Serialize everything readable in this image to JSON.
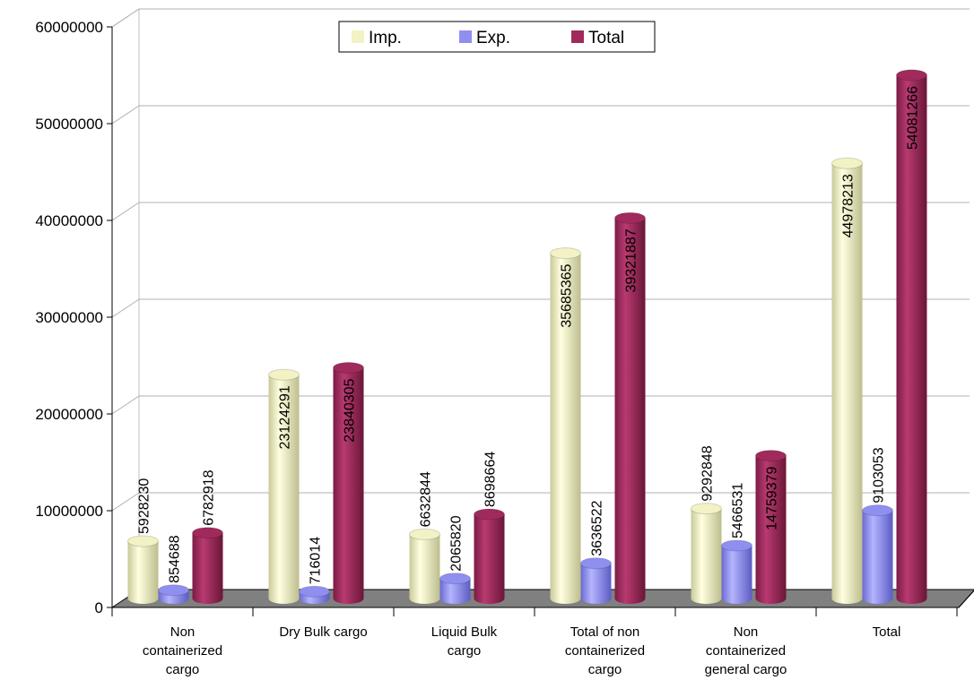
{
  "chart_data": {
    "type": "bar",
    "title": "",
    "xlabel": "",
    "ylabel": "",
    "categories": [
      [
        "Non",
        "containerized",
        "cargo"
      ],
      [
        "Dry Bulk cargo"
      ],
      [
        "Liquid Bulk",
        "cargo"
      ],
      [
        "Total of non",
        "containerized",
        "cargo"
      ],
      [
        "Non",
        "containerized",
        "general cargo"
      ],
      [
        "Total"
      ]
    ],
    "series": [
      {
        "name": "Imp.",
        "color": "#f2f2c4",
        "values": [
          5928230,
          23124291,
          6632844,
          35685365,
          9292848,
          44978213
        ]
      },
      {
        "name": "Exp.",
        "color": "#8f8ff0",
        "values": [
          854688,
          716014,
          2065820,
          3636522,
          5466531,
          9103053
        ]
      },
      {
        "name": "Total",
        "color": "#a02a5c",
        "values": [
          6782918,
          23840305,
          8698664,
          39321887,
          14759379,
          54081266
        ]
      }
    ],
    "yticks": [
      "0",
      "10000000",
      "20000000",
      "30000000",
      "40000000",
      "50000000",
      "60000000"
    ],
    "ylim": [
      0,
      60000000
    ],
    "grid": true,
    "legend": "top-center",
    "floor_color": "#808080"
  }
}
